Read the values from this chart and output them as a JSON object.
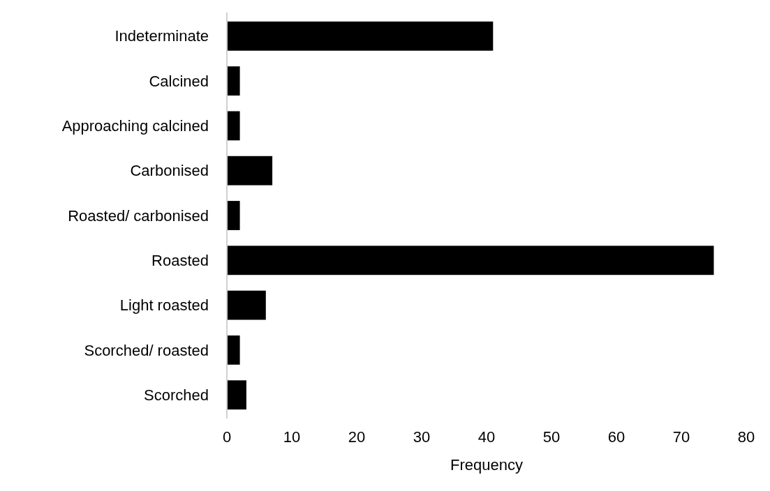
{
  "chart_data": {
    "type": "bar",
    "orientation": "horizontal",
    "xlabel": "Frequency",
    "categories": [
      "Indeterminate",
      "Calcined",
      "Approaching calcined",
      "Carbonised",
      "Roasted/ carbonised",
      "Roasted",
      "Light roasted",
      "Scorched/ roasted",
      "Scorched"
    ],
    "values": [
      41,
      2,
      2,
      7,
      2,
      75,
      6,
      2,
      3
    ],
    "color": "#000000",
    "xlim": [
      0,
      80
    ],
    "xticks": [
      0,
      10,
      20,
      30,
      40,
      50,
      60,
      70,
      80
    ],
    "grid": false
  }
}
